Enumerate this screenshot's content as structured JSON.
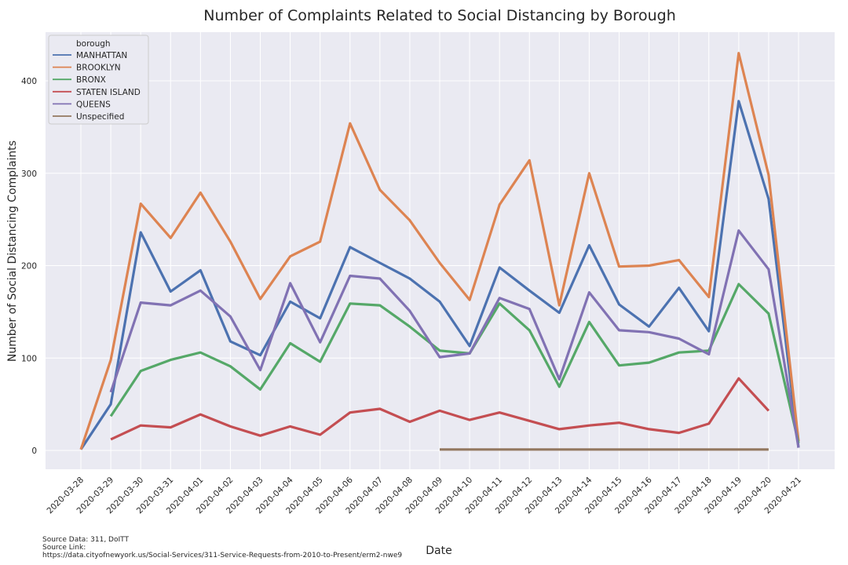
{
  "chart_data": {
    "type": "line",
    "title": "Number of Complaints Related to Social Distancing by Borough",
    "xlabel": "Date",
    "ylabel": "Number of Social Distancing Complaints",
    "x": [
      "2020-03-28",
      "2020-03-29",
      "2020-03-30",
      "2020-03-31",
      "2020-04-01",
      "2020-04-02",
      "2020-04-03",
      "2020-04-04",
      "2020-04-05",
      "2020-04-06",
      "2020-04-07",
      "2020-04-08",
      "2020-04-09",
      "2020-04-10",
      "2020-04-11",
      "2020-04-12",
      "2020-04-13",
      "2020-04-14",
      "2020-04-15",
      "2020-04-16",
      "2020-04-17",
      "2020-04-18",
      "2020-04-19",
      "2020-04-20",
      "2020-04-21"
    ],
    "yticks": [
      0,
      100,
      200,
      300,
      400
    ],
    "ylim": [
      -20,
      450
    ],
    "grid": true,
    "legend_title": "borough",
    "legend_position": "top-left",
    "series": [
      {
        "name": "MANHATTAN",
        "color": "#4c72b0",
        "values": [
          1,
          50,
          236,
          172,
          195,
          118,
          103,
          161,
          143,
          220,
          203,
          186,
          161,
          113,
          198,
          173,
          149,
          222,
          158,
          134,
          176,
          129,
          378,
          272,
          3
        ]
      },
      {
        "name": "BROOKLYN",
        "color": "#dd8452",
        "values": [
          1,
          98,
          267,
          230,
          279,
          226,
          164,
          210,
          226,
          354,
          282,
          249,
          203,
          163,
          266,
          314,
          157,
          300,
          199,
          200,
          206,
          166,
          430,
          298,
          10
        ]
      },
      {
        "name": "BRONX",
        "color": "#55a868",
        "values": [
          null,
          37,
          86,
          98,
          106,
          91,
          66,
          116,
          96,
          159,
          157,
          134,
          108,
          105,
          159,
          130,
          69,
          139,
          92,
          95,
          106,
          108,
          180,
          148,
          8
        ]
      },
      {
        "name": "STATEN ISLAND",
        "color": "#c44e52",
        "values": [
          null,
          12,
          27,
          25,
          39,
          26,
          16,
          26,
          17,
          41,
          45,
          31,
          43,
          33,
          41,
          32,
          23,
          27,
          30,
          23,
          19,
          29,
          78,
          43,
          null
        ]
      },
      {
        "name": "QUEENS",
        "color": "#8172b3",
        "values": [
          null,
          63,
          160,
          157,
          173,
          145,
          87,
          181,
          117,
          189,
          186,
          151,
          101,
          105,
          165,
          153,
          77,
          171,
          130,
          128,
          121,
          104,
          238,
          196,
          3
        ]
      },
      {
        "name": "Unspecified",
        "color": "#937860",
        "values": [
          null,
          null,
          null,
          null,
          null,
          null,
          null,
          null,
          null,
          null,
          null,
          null,
          1,
          1,
          1,
          1,
          1,
          1,
          1,
          1,
          1,
          1,
          1,
          1,
          null
        ]
      }
    ]
  },
  "source": {
    "line1": "Source Data: 311, DoITT",
    "line2": "Source Link:",
    "line3": "https://data.cityofnewyork.us/Social-Services/311-Service-Requests-from-2010-to-Present/erm2-nwe9"
  }
}
